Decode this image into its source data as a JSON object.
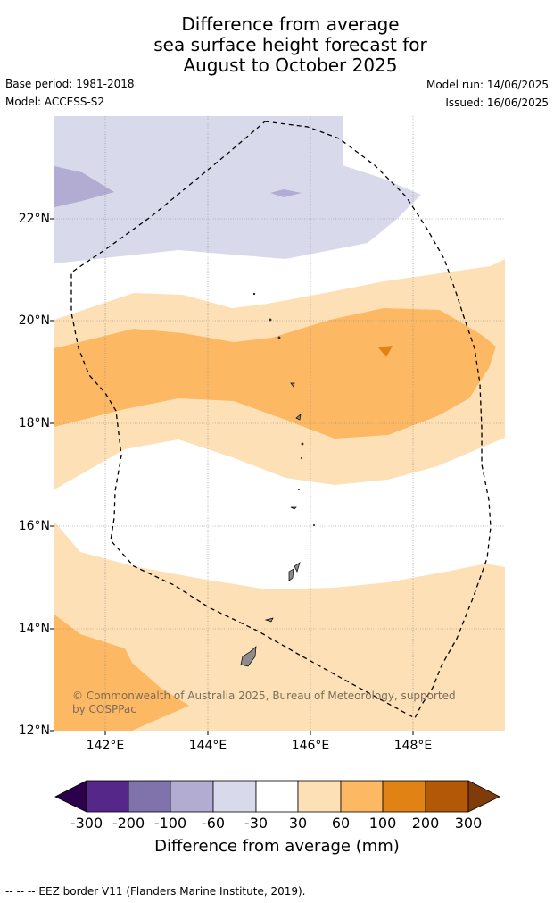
{
  "title": {
    "line1": "Difference from average",
    "line2": "sea surface height forecast for",
    "line3": "August to October 2025"
  },
  "meta": {
    "base_period": "Base period: 1981-2018",
    "model": "Model: ACCESS-S2",
    "model_run": "Model run: 14/06/2025",
    "issued": "Issued: 16/06/2025"
  },
  "map": {
    "lat_labels": [
      "22°N",
      "20°N",
      "18°N",
      "16°N",
      "14°N",
      "12°N"
    ],
    "lon_labels": [
      "142°E",
      "144°E",
      "146°E",
      "148°E"
    ],
    "credit": "© Commonwealth of Australia 2025, Bureau of Meteorology, supported by COSPPac",
    "colors": {
      "land": "#8c8c8c",
      "eez_line": "#000000",
      "gridline": "#888888"
    }
  },
  "colorbar": {
    "ticks": [
      "-300",
      "-200",
      "-100",
      "-60",
      "-30",
      "30",
      "60",
      "100",
      "200",
      "300"
    ],
    "label": "Difference from average (mm)",
    "colors": [
      "#2d004b",
      "#542788",
      "#8073ac",
      "#b2abd2",
      "#d8daeb",
      "#ffffff",
      "#fee0b6",
      "#fdb863",
      "#e08214",
      "#b35806",
      "#7f3b08"
    ]
  },
  "footer": {
    "legend": "--  --  -- EEZ border V11 (Flanders Marine Institute, 2019)."
  }
}
